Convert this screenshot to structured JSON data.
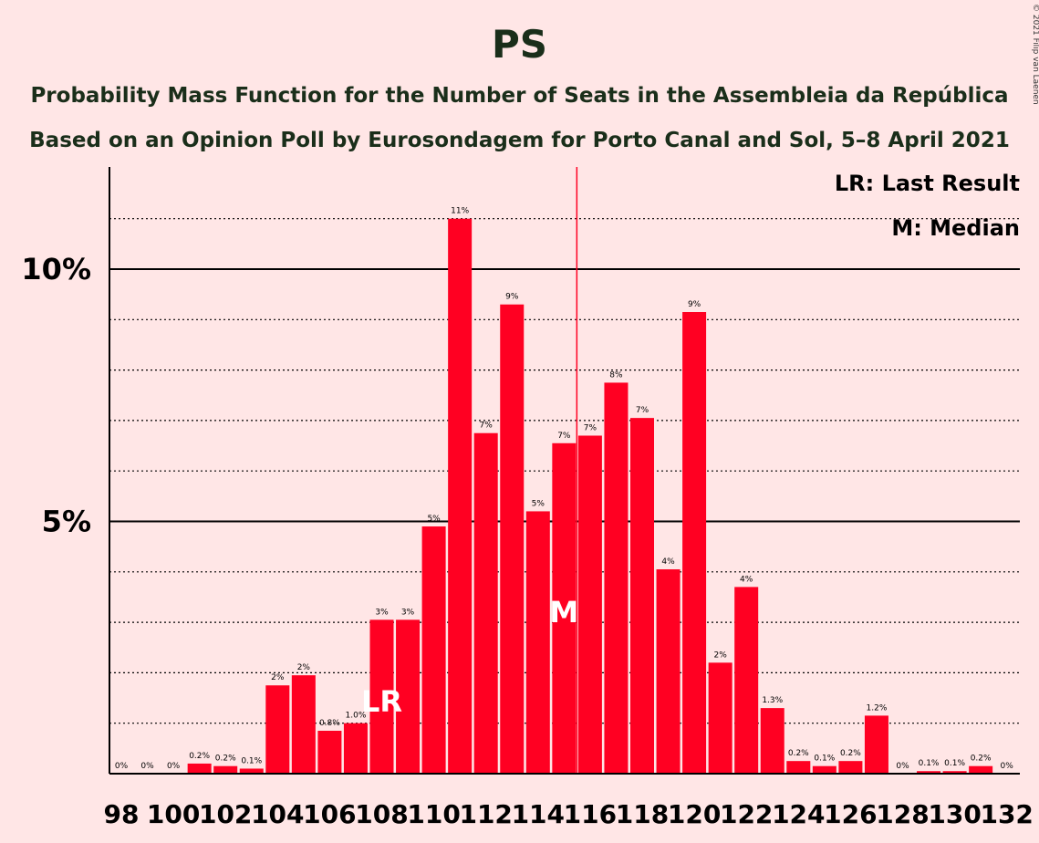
{
  "chart_data": {
    "type": "bar",
    "title": "PS",
    "subtitle_1": "Probability Mass Function for the Number of Seats in the Assembleia da República",
    "subtitle_2": "Based on an Opinion Poll by Eurosondagem for Porto Canal and Sol, 5–8 April 2021",
    "copyright": "© 2021 Filip van Laenen",
    "legend": {
      "lr": "LR: Last Result",
      "m": "M: Median"
    },
    "x": [
      98,
      99,
      100,
      101,
      102,
      103,
      104,
      105,
      106,
      107,
      108,
      109,
      110,
      111,
      112,
      113,
      114,
      115,
      116,
      117,
      118,
      119,
      120,
      121,
      122,
      123,
      124,
      125,
      126,
      127,
      128,
      129,
      130,
      131,
      132
    ],
    "xtick_labels": [
      "98",
      "100",
      "102",
      "104",
      "106",
      "108",
      "110",
      "112",
      "114",
      "116",
      "118",
      "120",
      "122",
      "124",
      "126",
      "128",
      "130",
      "132"
    ],
    "xtick_values": [
      98,
      100,
      102,
      104,
      106,
      108,
      110,
      112,
      114,
      116,
      118,
      120,
      122,
      124,
      126,
      128,
      130,
      132
    ],
    "values": [
      0,
      0,
      0,
      0.2,
      0.15,
      0.1,
      1.75,
      1.95,
      0.85,
      1.0,
      3.05,
      3.05,
      4.9,
      11.0,
      6.75,
      9.3,
      5.2,
      6.55,
      6.7,
      7.75,
      7.05,
      4.05,
      9.15,
      2.2,
      3.7,
      1.3,
      0.25,
      0.15,
      0.25,
      1.15,
      0,
      0.05,
      0.05,
      0.15,
      0
    ],
    "labels": [
      "0%",
      "0%",
      "0%",
      "0.2%",
      "0.2%",
      "0.1%",
      "2%",
      "2%",
      "0.8%",
      "1.0%",
      "3%",
      "3%",
      "5%",
      "11%",
      "7%",
      "9%",
      "5%",
      "7%",
      "7%",
      "8%",
      "7%",
      "4%",
      "9%",
      "2%",
      "4%",
      "1.3%",
      "0.2%",
      "0.1%",
      "0.2%",
      "1.2%",
      "0%",
      "0.1%",
      "0.1%",
      "0.2%",
      "0%"
    ],
    "ylim": [
      0,
      12
    ],
    "yticks": [
      {
        "value": 5,
        "label": "5%"
      },
      {
        "value": 10,
        "label": "10%"
      }
    ],
    "minor_gridlines": [
      1,
      2,
      3,
      4,
      6,
      7,
      8,
      9,
      11
    ],
    "last_result": {
      "seat": 108,
      "label": "LR"
    },
    "median": {
      "seat": 115,
      "label": "M"
    },
    "colors": {
      "bar": "#FF0022",
      "background": "#FFE6E6",
      "title": "#1A2E1A",
      "median_line": "#FF0022"
    }
  }
}
